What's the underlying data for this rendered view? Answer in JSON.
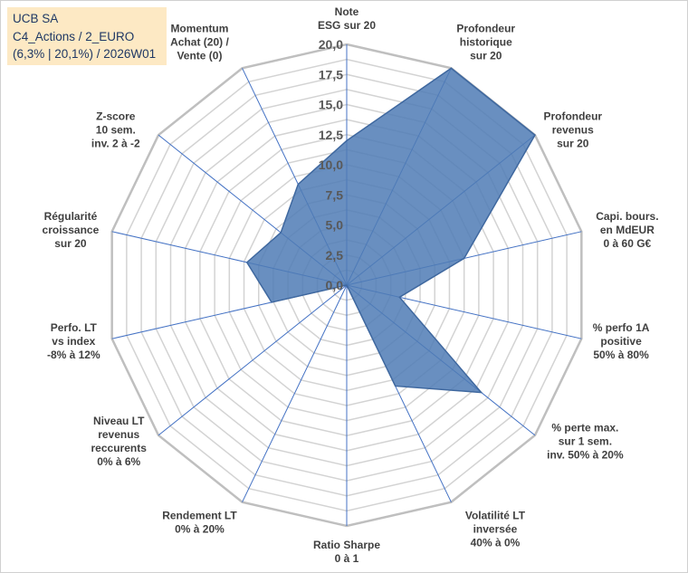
{
  "chart_data": {
    "type": "radar",
    "title_lines": [
      "UCB SA",
      "C4_Actions / 2_EURO",
      "(6,3% | 20,1%) / 2026W01"
    ],
    "rmin": 0,
    "rmax": 20,
    "tick_labels": [
      "0,0",
      "2,5",
      "5,0",
      "7,5",
      "10,0",
      "12,5",
      "15,0",
      "17,5",
      "20,0"
    ],
    "axes": [
      {
        "label": [
          "Note",
          "ESG sur 20"
        ],
        "value": 12.0
      },
      {
        "label": [
          "Profondeur",
          "historique",
          "sur 20"
        ],
        "value": 20.0
      },
      {
        "label": [
          "Profondeur",
          "revenus",
          "sur 20"
        ],
        "value": 20.0
      },
      {
        "label": [
          "Capi. bours.",
          "en MdEUR",
          "0 à 60 G€"
        ],
        "value": 10.0
      },
      {
        "label": [
          "% perfo 1A",
          "positive",
          "50% à 80%"
        ],
        "value": 4.5
      },
      {
        "label": [
          "% perte max.",
          "sur 1 sem.",
          "inv. 50% à 20%"
        ],
        "value": 14.3
      },
      {
        "label": [
          "Volatilité LT",
          "inversée",
          "40% à 0%"
        ],
        "value": 9.3
      },
      {
        "label": [
          "Ratio Sharpe",
          "0 à 1"
        ],
        "value": 0.0
      },
      {
        "label": [
          "Rendement LT",
          "0% à 20%"
        ],
        "value": 0.0
      },
      {
        "label": [
          "Niveau LT",
          "revenus",
          "reccurents",
          "0% à 6%"
        ],
        "value": 0.0
      },
      {
        "label": [
          "Perfo. LT",
          "vs index",
          "-8% à 12%"
        ],
        "value": 6.4
      },
      {
        "label": [
          "Régularité",
          "croissance",
          "sur 20"
        ],
        "value": 8.5
      },
      {
        "label": [
          "Z-score",
          "10 sem.",
          "inv. 2 à -2"
        ],
        "value": 7.0
      },
      {
        "label": [
          "Momentum",
          "Achat (20) /",
          "Vente (0)"
        ],
        "value": 9.3
      }
    ],
    "colors": {
      "fill": "#4f7bb5",
      "stroke": "#3f689f",
      "ring": "#d3d3d3",
      "outer_ring": "#bfbfbf",
      "spoke": "#4472c4",
      "title_bg": "#fde9c4",
      "title_text": "#1f3864"
    }
  }
}
